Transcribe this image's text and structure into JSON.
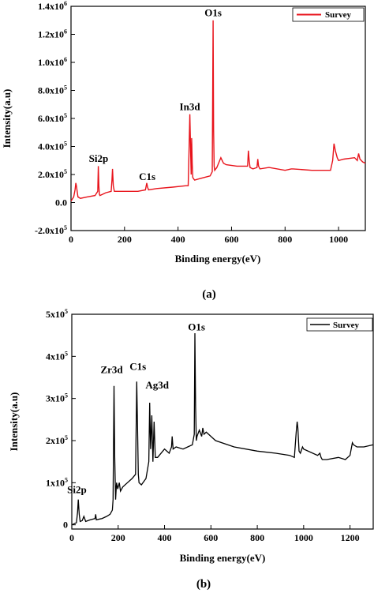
{
  "panels": [
    {
      "caption": "(a)",
      "legend": "Survey",
      "colors": {
        "series": "#e8131b"
      },
      "chart": {
        "type": "line",
        "xlabel": "Binding energy(eV)",
        "ylabel": "Intensity(a.u)",
        "xlim": [
          0,
          1100
        ],
        "ylim": [
          -200000,
          1400000
        ],
        "x_ticks": [
          {
            "v": 0,
            "label": "0"
          },
          {
            "v": 200,
            "label": "200"
          },
          {
            "v": 400,
            "label": "400"
          },
          {
            "v": 600,
            "label": "600"
          },
          {
            "v": 800,
            "label": "800"
          },
          {
            "v": 1000,
            "label": "1000"
          }
        ],
        "y_ticks": [
          {
            "v": -200000,
            "base": "-2.0x10",
            "exp": "5"
          },
          {
            "v": 0,
            "base": "0.0",
            "exp": ""
          },
          {
            "v": 200000,
            "base": "2.0x10",
            "exp": "5"
          },
          {
            "v": 400000,
            "base": "4.0x10",
            "exp": "5"
          },
          {
            "v": 600000,
            "base": "6.0x10",
            "exp": "5"
          },
          {
            "v": 800000,
            "base": "8.0x10",
            "exp": "5"
          },
          {
            "v": 1000000,
            "base": "1.0x10",
            "exp": "6"
          },
          {
            "v": 1200000,
            "base": "1.2x10",
            "exp": "6"
          },
          {
            "v": 1400000,
            "base": "1.4x10",
            "exp": "6"
          }
        ],
        "annotations": [
          {
            "text": "O1s",
            "x": 531,
            "y": 1330000
          },
          {
            "text": "In3d",
            "x": 444,
            "y": 660000
          },
          {
            "text": "Si2p",
            "x": 103,
            "y": 290000
          },
          {
            "text": "C1s",
            "x": 285,
            "y": 160000
          }
        ],
        "series": [
          {
            "name": "Survey",
            "x": [
              0,
              10,
              15,
              18,
              20,
              23,
              26,
              35,
              60,
              90,
              100,
              102,
              104,
              106,
              108,
              120,
              130,
              150,
              153,
              155,
              158,
              162,
              180,
              200,
              250,
              278,
              283,
              286,
              290,
              320,
              380,
              430,
              438,
              441,
              444,
              447,
              449,
              451,
              453,
              455,
              458,
              462,
              480,
              500,
              520,
              528,
              531,
              533,
              535,
              537,
              545,
              560,
              565,
              570,
              580,
              620,
              660,
              663,
              666,
              669,
              680,
              695,
              698,
              701,
              706,
              740,
              800,
              823,
              830,
              900,
              970,
              978,
              983,
              988,
              995,
              1000,
              1020,
              1060,
              1070,
              1075,
              1080,
              1090,
              1100
            ],
            "y": [
              10000,
              40000,
              90000,
              140000,
              120000,
              80000,
              40000,
              30000,
              40000,
              50000,
              80000,
              260000,
              120000,
              60000,
              50000,
              60000,
              70000,
              80000,
              160000,
              240000,
              120000,
              80000,
              80000,
              80000,
              80000,
              90000,
              140000,
              110000,
              90000,
              100000,
              110000,
              120000,
              120000,
              350000,
              630000,
              360000,
              200000,
              460000,
              280000,
              180000,
              170000,
              160000,
              170000,
              180000,
              190000,
              220000,
              1300000,
              520000,
              260000,
              230000,
              250000,
              320000,
              300000,
              280000,
              270000,
              260000,
              260000,
              370000,
              300000,
              250000,
              240000,
              250000,
              310000,
              260000,
              240000,
              250000,
              230000,
              240000,
              240000,
              230000,
              230000,
              300000,
              420000,
              370000,
              320000,
              300000,
              310000,
              320000,
              300000,
              350000,
              310000,
              290000,
              280000
            ]
          }
        ]
      }
    },
    {
      "caption": "(b)",
      "legend": "Survey",
      "colors": {
        "series": "#000000"
      },
      "chart": {
        "type": "line",
        "xlabel": "Binding energy(eV)",
        "ylabel": "Intensity(a.u)",
        "xlim": [
          0,
          1300
        ],
        "ylim": [
          -10000,
          500000
        ],
        "x_ticks": [
          {
            "v": 0,
            "label": "0"
          },
          {
            "v": 200,
            "label": "200"
          },
          {
            "v": 400,
            "label": "400"
          },
          {
            "v": 600,
            "label": "600"
          },
          {
            "v": 800,
            "label": "800"
          },
          {
            "v": 1000,
            "label": "1000"
          },
          {
            "v": 1200,
            "label": "1200"
          }
        ],
        "y_ticks": [
          {
            "v": 0,
            "base": "0",
            "exp": ""
          },
          {
            "v": 100000,
            "base": "1x10",
            "exp": "5"
          },
          {
            "v": 200000,
            "base": "2x10",
            "exp": "5"
          },
          {
            "v": 300000,
            "base": "3x10",
            "exp": "5"
          },
          {
            "v": 400000,
            "base": "4x10",
            "exp": "5"
          },
          {
            "v": 500000,
            "base": "5x10",
            "exp": "5"
          }
        ],
        "annotations": [
          {
            "text": "O1s",
            "x": 538,
            "y": 462000
          },
          {
            "text": "Zr3d",
            "x": 172,
            "y": 360000
          },
          {
            "text": "C1s",
            "x": 285,
            "y": 368000
          },
          {
            "text": "Ag3d",
            "x": 368,
            "y": 324000
          },
          {
            "text": "Si2p",
            "x": 22,
            "y": 75000
          }
        ],
        "series": [
          {
            "name": "Survey",
            "x": [
              0,
              20,
              25,
              28,
              32,
              36,
              45,
              52,
              60,
              80,
              100,
              103,
              106,
              130,
              150,
              165,
              175,
              178,
              182,
              185,
              189,
              193,
              198,
              205,
              210,
              220,
              240,
              260,
              275,
              280,
              284,
              287,
              290,
              300,
              320,
              332,
              336,
              340,
              345,
              350,
              355,
              360,
              370,
              400,
              420,
              430,
              433,
              437,
              450,
              480,
              500,
              520,
              528,
              531,
              534,
              537,
              540,
              550,
              560,
              565,
              570,
              580,
              620,
              700,
              800,
              880,
              940,
              960,
              968,
              972,
              975,
              980,
              986,
              995,
              1000,
              1060,
              1070,
              1075,
              1080,
              1100,
              1150,
              1180,
              1200,
              1210,
              1215,
              1230,
              1260,
              1300
            ],
            "y": [
              0,
              5000,
              30000,
              60000,
              25000,
              8000,
              10000,
              20000,
              8000,
              12000,
              15000,
              25000,
              12000,
              15000,
              20000,
              25000,
              35000,
              60000,
              330000,
              160000,
              60000,
              100000,
              85000,
              100000,
              80000,
              90000,
              100000,
              110000,
              120000,
              340000,
              210000,
              120000,
              100000,
              95000,
              110000,
              150000,
              290000,
              180000,
              260000,
              150000,
              245000,
              160000,
              160000,
              180000,
              170000,
              185000,
              210000,
              180000,
              185000,
              180000,
              185000,
              190000,
              215000,
              455000,
              280000,
              200000,
              210000,
              225000,
              210000,
              230000,
              215000,
              220000,
              200000,
              185000,
              175000,
              170000,
              165000,
              160000,
              220000,
              245000,
              230000,
              175000,
              170000,
              185000,
              180000,
              165000,
              170000,
              160000,
              155000,
              155000,
              160000,
              155000,
              165000,
              195000,
              190000,
              185000,
              185000,
              190000
            ]
          }
        ]
      }
    }
  ]
}
